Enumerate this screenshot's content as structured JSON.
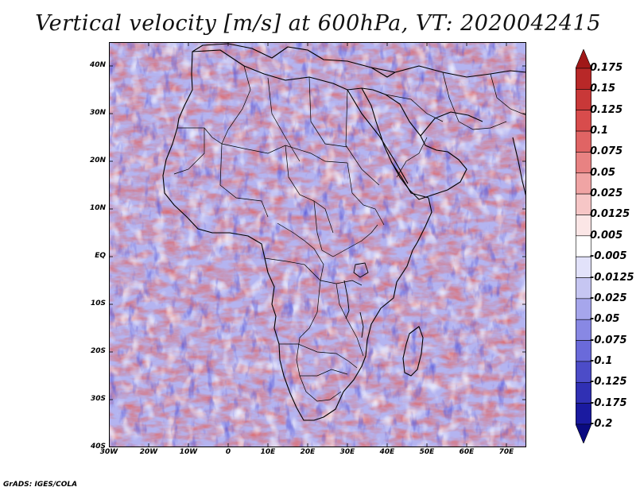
{
  "title": "Vertical velocity [m/s] at 600hPa, VT: 2020042415",
  "credit": "GrADS: IGES/COLA",
  "map": {
    "lon_range": [
      -30,
      75
    ],
    "lat_range": [
      -40,
      45
    ],
    "lat_ticks": [
      {
        "value": 40,
        "label": "40N"
      },
      {
        "value": 30,
        "label": "30N"
      },
      {
        "value": 20,
        "label": "20N"
      },
      {
        "value": 10,
        "label": "10N"
      },
      {
        "value": 0,
        "label": "EQ"
      },
      {
        "value": -10,
        "label": "10S"
      },
      {
        "value": -20,
        "label": "20S"
      },
      {
        "value": -30,
        "label": "30S"
      },
      {
        "value": -40,
        "label": "40S"
      }
    ],
    "lon_ticks": [
      {
        "value": -30,
        "label": "30W"
      },
      {
        "value": -20,
        "label": "20W"
      },
      {
        "value": -10,
        "label": "10W"
      },
      {
        "value": 0,
        "label": "0"
      },
      {
        "value": 10,
        "label": "10E"
      },
      {
        "value": 20,
        "label": "20E"
      },
      {
        "value": 30,
        "label": "30E"
      },
      {
        "value": 40,
        "label": "40E"
      },
      {
        "value": 50,
        "label": "50E"
      },
      {
        "value": 60,
        "label": "60E"
      },
      {
        "value": 70,
        "label": "70E"
      }
    ]
  },
  "colorbar": {
    "levels": [
      "0.175",
      "0.15",
      "0.125",
      "0.1",
      "0.075",
      "0.05",
      "0.025",
      "0.0125",
      "0.005",
      "-0.005",
      "-0.0125",
      "-0.025",
      "-0.05",
      "-0.075",
      "-0.1",
      "-0.125",
      "-0.175",
      "-0.2"
    ],
    "colors": [
      "#a01818",
      "#b82828",
      "#c83838",
      "#d84c4c",
      "#e06464",
      "#e88282",
      "#f0a4a4",
      "#f6c6c6",
      "#fbe6e6",
      "#ffffff",
      "#e2e2fa",
      "#c6c6f2",
      "#a6a6ec",
      "#8888e4",
      "#6a6ada",
      "#4c4cc8",
      "#3030b4",
      "#1a1aa0",
      "#0a0a80"
    ]
  }
}
